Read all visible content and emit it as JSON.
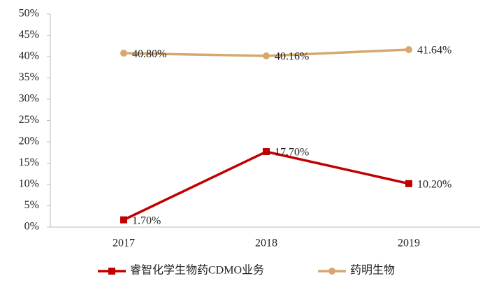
{
  "chart_data": {
    "type": "line",
    "categories": [
      "2017",
      "2018",
      "2019"
    ],
    "series": [
      {
        "name": "睿智化学生物药CDMO业务",
        "color": "#c00000",
        "marker": "square",
        "values": [
          1.7,
          17.7,
          10.2
        ],
        "value_labels": [
          "1.70%",
          "17.70%",
          "10.20%"
        ]
      },
      {
        "name": "药明生物",
        "color": "#d6a86e",
        "marker": "circle",
        "values": [
          40.8,
          40.16,
          41.64
        ],
        "value_labels": [
          "40.80%",
          "40.16%",
          "41.64%"
        ]
      }
    ],
    "ylim": [
      0,
      50
    ],
    "yticks": [
      {
        "value": 0,
        "label": "0%"
      },
      {
        "value": 5,
        "label": "5%"
      },
      {
        "value": 10,
        "label": "10%"
      },
      {
        "value": 15,
        "label": "15%"
      },
      {
        "value": 20,
        "label": "20%"
      },
      {
        "value": 25,
        "label": "25%"
      },
      {
        "value": 30,
        "label": "30%"
      },
      {
        "value": 35,
        "label": "35%"
      },
      {
        "value": 40,
        "label": "40%"
      },
      {
        "value": 45,
        "label": "45%"
      },
      {
        "value": 50,
        "label": "50%"
      }
    ],
    "grid": false,
    "legend": "bottom"
  }
}
